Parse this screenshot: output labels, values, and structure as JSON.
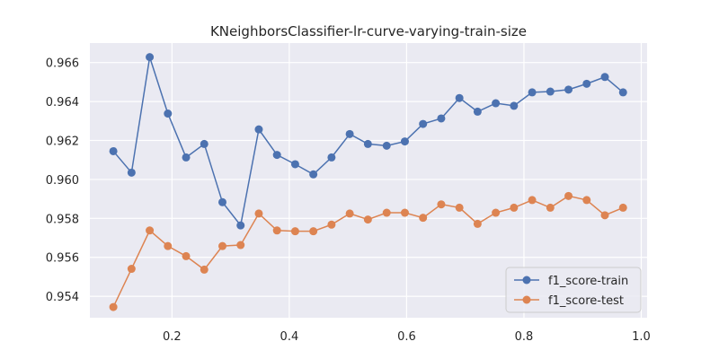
{
  "chart_data": {
    "type": "line",
    "title": "KNeighborsClassifier-lr-curve-varying-train-size",
    "xlabel": "",
    "ylabel": "",
    "xlim": [
      0.06,
      1.01
    ],
    "ylim": [
      0.9529,
      0.967
    ],
    "xticks": [
      0.2,
      0.4,
      0.6,
      0.8,
      1.0
    ],
    "xtick_labels": [
      "0.2",
      "0.4",
      "0.6",
      "0.8",
      "1.0"
    ],
    "yticks": [
      0.954,
      0.956,
      0.958,
      0.96,
      0.962,
      0.964,
      0.966
    ],
    "ytick_labels": [
      "0.954",
      "0.956",
      "0.958",
      "0.960",
      "0.962",
      "0.964",
      "0.966"
    ],
    "grid": true,
    "legend_position": "lower-right",
    "x": [
      0.1,
      0.131,
      0.162,
      0.193,
      0.224,
      0.255,
      0.286,
      0.317,
      0.348,
      0.379,
      0.41,
      0.441,
      0.472,
      0.503,
      0.534,
      0.566,
      0.597,
      0.628,
      0.659,
      0.69,
      0.721,
      0.752,
      0.783,
      0.814,
      0.845,
      0.876,
      0.907,
      0.938,
      0.969
    ],
    "series": [
      {
        "name": "f1_score-train",
        "color": "#4c72b0",
        "values": [
          0.96145,
          0.96035,
          0.96628,
          0.96338,
          0.96113,
          0.96182,
          0.95883,
          0.95764,
          0.96257,
          0.96126,
          0.96078,
          0.96026,
          0.96113,
          0.96233,
          0.96182,
          0.96173,
          0.96195,
          0.96285,
          0.96313,
          0.96418,
          0.96348,
          0.96391,
          0.96378,
          0.96447,
          0.96451,
          0.96461,
          0.96491,
          0.96526,
          0.96447
        ]
      },
      {
        "name": "f1_score-test",
        "color": "#dd8452",
        "values": [
          0.95345,
          0.95541,
          0.95738,
          0.95658,
          0.95606,
          0.95537,
          0.95658,
          0.95663,
          0.95825,
          0.95738,
          0.95734,
          0.95734,
          0.95768,
          0.95825,
          0.95794,
          0.95829,
          0.95829,
          0.95803,
          0.95872,
          0.95855,
          0.95772,
          0.95829,
          0.95855,
          0.95894,
          0.95855,
          0.95915,
          0.95894,
          0.95816,
          0.95855
        ]
      }
    ]
  }
}
